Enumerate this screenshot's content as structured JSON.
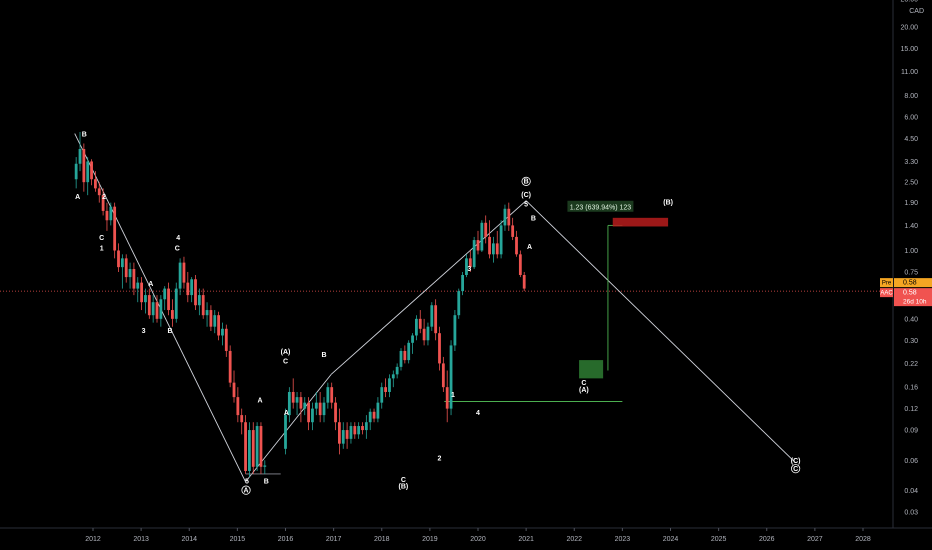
{
  "chart_data": {
    "type": "candlestick",
    "y_scale": "log",
    "currency_label": "CAD",
    "ylim": [
      0.025,
      28
    ],
    "xlim": [
      2011.3,
      2028.7
    ],
    "price_ticks": [
      "28.00",
      "20.00",
      "15.00",
      "11.00",
      "8.00",
      "6.00",
      "4.50",
      "3.30",
      "2.50",
      "1.90",
      "1.40",
      "1.00",
      "0.75",
      "0.58",
      "0.40",
      "0.30",
      "0.22",
      "0.16",
      "0.12",
      "0.09",
      "0.06",
      "0.04",
      "0.03"
    ],
    "x_ticks": [
      "2012",
      "2013",
      "2014",
      "2015",
      "2016",
      "2017",
      "2018",
      "2019",
      "2020",
      "2021",
      "2022",
      "2023",
      "2024",
      "2025",
      "2026",
      "2027",
      "2028"
    ],
    "current_price": 0.58,
    "price_tags": [
      {
        "label": "Pre",
        "value": "0.58",
        "color": "#f5a623"
      },
      {
        "label": "AAC",
        "value": "0.58",
        "color": "#f05350",
        "countdown": "26d 10h"
      }
    ],
    "candles": [
      {
        "t": 2011.65,
        "o": 2.6,
        "h": 3.5,
        "l": 2.3,
        "c": 3.2
      },
      {
        "t": 2011.73,
        "o": 3.2,
        "h": 4.9,
        "l": 2.9,
        "c": 3.9
      },
      {
        "t": 2011.81,
        "o": 3.9,
        "h": 4.2,
        "l": 2.2,
        "c": 2.5
      },
      {
        "t": 2011.89,
        "o": 2.5,
        "h": 3.5,
        "l": 2.1,
        "c": 3.3
      },
      {
        "t": 2011.97,
        "o": 3.3,
        "h": 3.4,
        "l": 2.4,
        "c": 2.6
      },
      {
        "t": 2012.05,
        "o": 2.6,
        "h": 2.9,
        "l": 2.2,
        "c": 2.3
      },
      {
        "t": 2012.13,
        "o": 2.3,
        "h": 2.5,
        "l": 1.9,
        "c": 2.1
      },
      {
        "t": 2012.21,
        "o": 2.1,
        "h": 2.3,
        "l": 1.6,
        "c": 1.7
      },
      {
        "t": 2012.29,
        "o": 1.7,
        "h": 1.9,
        "l": 1.3,
        "c": 1.5
      },
      {
        "t": 2012.37,
        "o": 1.5,
        "h": 1.9,
        "l": 1.4,
        "c": 1.8
      },
      {
        "t": 2012.45,
        "o": 1.8,
        "h": 1.9,
        "l": 0.9,
        "c": 1.0
      },
      {
        "t": 2012.53,
        "o": 1.0,
        "h": 1.1,
        "l": 0.75,
        "c": 0.8
      },
      {
        "t": 2012.61,
        "o": 0.8,
        "h": 0.95,
        "l": 0.6,
        "c": 0.9
      },
      {
        "t": 2012.69,
        "o": 0.9,
        "h": 0.95,
        "l": 0.65,
        "c": 0.7
      },
      {
        "t": 2012.77,
        "o": 0.7,
        "h": 0.85,
        "l": 0.6,
        "c": 0.78
      },
      {
        "t": 2012.85,
        "o": 0.78,
        "h": 0.85,
        "l": 0.55,
        "c": 0.6
      },
      {
        "t": 2012.93,
        "o": 0.6,
        "h": 0.7,
        "l": 0.5,
        "c": 0.65
      },
      {
        "t": 2013.01,
        "o": 0.65,
        "h": 0.7,
        "l": 0.45,
        "c": 0.5
      },
      {
        "t": 2013.09,
        "o": 0.5,
        "h": 0.6,
        "l": 0.43,
        "c": 0.55
      },
      {
        "t": 2013.17,
        "o": 0.55,
        "h": 0.6,
        "l": 0.4,
        "c": 0.42
      },
      {
        "t": 2013.25,
        "o": 0.42,
        "h": 0.55,
        "l": 0.38,
        "c": 0.5
      },
      {
        "t": 2013.33,
        "o": 0.5,
        "h": 0.55,
        "l": 0.38,
        "c": 0.4
      },
      {
        "t": 2013.41,
        "o": 0.4,
        "h": 0.55,
        "l": 0.36,
        "c": 0.52
      },
      {
        "t": 2013.49,
        "o": 0.52,
        "h": 0.62,
        "l": 0.45,
        "c": 0.6
      },
      {
        "t": 2013.57,
        "o": 0.6,
        "h": 0.65,
        "l": 0.42,
        "c": 0.45
      },
      {
        "t": 2013.65,
        "o": 0.45,
        "h": 0.52,
        "l": 0.36,
        "c": 0.4
      },
      {
        "t": 2013.73,
        "o": 0.4,
        "h": 0.65,
        "l": 0.38,
        "c": 0.6
      },
      {
        "t": 2013.81,
        "o": 0.6,
        "h": 0.9,
        "l": 0.55,
        "c": 0.85
      },
      {
        "t": 2013.89,
        "o": 0.85,
        "h": 0.92,
        "l": 0.6,
        "c": 0.65
      },
      {
        "t": 2013.97,
        "o": 0.65,
        "h": 0.75,
        "l": 0.5,
        "c": 0.55
      },
      {
        "t": 2014.05,
        "o": 0.55,
        "h": 0.7,
        "l": 0.5,
        "c": 0.68
      },
      {
        "t": 2014.13,
        "o": 0.68,
        "h": 0.72,
        "l": 0.45,
        "c": 0.48
      },
      {
        "t": 2014.21,
        "o": 0.48,
        "h": 0.6,
        "l": 0.42,
        "c": 0.55
      },
      {
        "t": 2014.29,
        "o": 0.55,
        "h": 0.6,
        "l": 0.4,
        "c": 0.42
      },
      {
        "t": 2014.37,
        "o": 0.42,
        "h": 0.5,
        "l": 0.36,
        "c": 0.45
      },
      {
        "t": 2014.45,
        "o": 0.45,
        "h": 0.48,
        "l": 0.34,
        "c": 0.36
      },
      {
        "t": 2014.53,
        "o": 0.36,
        "h": 0.45,
        "l": 0.33,
        "c": 0.42
      },
      {
        "t": 2014.61,
        "o": 0.42,
        "h": 0.44,
        "l": 0.3,
        "c": 0.32
      },
      {
        "t": 2014.69,
        "o": 0.32,
        "h": 0.38,
        "l": 0.28,
        "c": 0.35
      },
      {
        "t": 2014.77,
        "o": 0.35,
        "h": 0.37,
        "l": 0.24,
        "c": 0.26
      },
      {
        "t": 2014.85,
        "o": 0.26,
        "h": 0.28,
        "l": 0.16,
        "c": 0.17
      },
      {
        "t": 2014.93,
        "o": 0.17,
        "h": 0.2,
        "l": 0.13,
        "c": 0.14
      },
      {
        "t": 2015.01,
        "o": 0.14,
        "h": 0.16,
        "l": 0.1,
        "c": 0.11
      },
      {
        "t": 2015.09,
        "o": 0.11,
        "h": 0.12,
        "l": 0.085,
        "c": 0.1
      },
      {
        "t": 2015.17,
        "o": 0.1,
        "h": 0.11,
        "l": 0.05,
        "c": 0.052
      },
      {
        "t": 2015.25,
        "o": 0.052,
        "h": 0.1,
        "l": 0.048,
        "c": 0.09
      },
      {
        "t": 2015.33,
        "o": 0.09,
        "h": 0.1,
        "l": 0.05,
        "c": 0.055
      },
      {
        "t": 2015.41,
        "o": 0.055,
        "h": 0.1,
        "l": 0.052,
        "c": 0.095
      },
      {
        "t": 2015.49,
        "o": 0.095,
        "h": 0.1,
        "l": 0.05,
        "c": 0.055
      },
      {
        "t": 2015.57,
        "o": 0.055,
        "h": 0.06,
        "l": 0.05,
        "c": 0.056
      },
      {
        "t": 2016.0,
        "o": 0.07,
        "h": 0.12,
        "l": 0.065,
        "c": 0.11
      },
      {
        "t": 2016.08,
        "o": 0.11,
        "h": 0.16,
        "l": 0.1,
        "c": 0.15
      },
      {
        "t": 2016.16,
        "o": 0.15,
        "h": 0.18,
        "l": 0.12,
        "c": 0.13
      },
      {
        "t": 2016.24,
        "o": 0.13,
        "h": 0.15,
        "l": 0.11,
        "c": 0.14
      },
      {
        "t": 2016.32,
        "o": 0.14,
        "h": 0.15,
        "l": 0.1,
        "c": 0.12
      },
      {
        "t": 2016.4,
        "o": 0.12,
        "h": 0.14,
        "l": 0.11,
        "c": 0.13
      },
      {
        "t": 2016.48,
        "o": 0.13,
        "h": 0.14,
        "l": 0.09,
        "c": 0.1
      },
      {
        "t": 2016.56,
        "o": 0.1,
        "h": 0.13,
        "l": 0.09,
        "c": 0.12
      },
      {
        "t": 2016.64,
        "o": 0.12,
        "h": 0.15,
        "l": 0.11,
        "c": 0.13
      },
      {
        "t": 2016.72,
        "o": 0.13,
        "h": 0.15,
        "l": 0.1,
        "c": 0.11
      },
      {
        "t": 2016.8,
        "o": 0.11,
        "h": 0.14,
        "l": 0.1,
        "c": 0.13
      },
      {
        "t": 2016.88,
        "o": 0.13,
        "h": 0.17,
        "l": 0.12,
        "c": 0.16
      },
      {
        "t": 2016.96,
        "o": 0.16,
        "h": 0.17,
        "l": 0.12,
        "c": 0.13
      },
      {
        "t": 2017.04,
        "o": 0.13,
        "h": 0.14,
        "l": 0.09,
        "c": 0.1
      },
      {
        "t": 2017.12,
        "o": 0.1,
        "h": 0.12,
        "l": 0.065,
        "c": 0.075
      },
      {
        "t": 2017.2,
        "o": 0.075,
        "h": 0.1,
        "l": 0.07,
        "c": 0.09
      },
      {
        "t": 2017.28,
        "o": 0.09,
        "h": 0.1,
        "l": 0.07,
        "c": 0.08
      },
      {
        "t": 2017.36,
        "o": 0.08,
        "h": 0.1,
        "l": 0.075,
        "c": 0.095
      },
      {
        "t": 2017.44,
        "o": 0.095,
        "h": 0.1,
        "l": 0.08,
        "c": 0.085
      },
      {
        "t": 2017.52,
        "o": 0.085,
        "h": 0.1,
        "l": 0.08,
        "c": 0.095
      },
      {
        "t": 2017.6,
        "o": 0.095,
        "h": 0.1,
        "l": 0.085,
        "c": 0.09
      },
      {
        "t": 2017.68,
        "o": 0.09,
        "h": 0.11,
        "l": 0.08,
        "c": 0.1
      },
      {
        "t": 2017.76,
        "o": 0.1,
        "h": 0.12,
        "l": 0.09,
        "c": 0.115
      },
      {
        "t": 2017.84,
        "o": 0.115,
        "h": 0.12,
        "l": 0.1,
        "c": 0.105
      },
      {
        "t": 2017.92,
        "o": 0.105,
        "h": 0.14,
        "l": 0.1,
        "c": 0.13
      },
      {
        "t": 2018.0,
        "o": 0.13,
        "h": 0.17,
        "l": 0.12,
        "c": 0.16
      },
      {
        "t": 2018.08,
        "o": 0.16,
        "h": 0.18,
        "l": 0.14,
        "c": 0.15
      },
      {
        "t": 2018.16,
        "o": 0.15,
        "h": 0.19,
        "l": 0.14,
        "c": 0.18
      },
      {
        "t": 2018.24,
        "o": 0.18,
        "h": 0.2,
        "l": 0.16,
        "c": 0.19
      },
      {
        "t": 2018.32,
        "o": 0.19,
        "h": 0.22,
        "l": 0.18,
        "c": 0.21
      },
      {
        "t": 2018.4,
        "o": 0.21,
        "h": 0.27,
        "l": 0.2,
        "c": 0.26
      },
      {
        "t": 2018.48,
        "o": 0.26,
        "h": 0.28,
        "l": 0.22,
        "c": 0.23
      },
      {
        "t": 2018.56,
        "o": 0.23,
        "h": 0.3,
        "l": 0.22,
        "c": 0.29
      },
      {
        "t": 2018.64,
        "o": 0.29,
        "h": 0.33,
        "l": 0.25,
        "c": 0.32
      },
      {
        "t": 2018.72,
        "o": 0.32,
        "h": 0.42,
        "l": 0.3,
        "c": 0.4
      },
      {
        "t": 2018.8,
        "o": 0.4,
        "h": 0.45,
        "l": 0.33,
        "c": 0.35
      },
      {
        "t": 2018.88,
        "o": 0.35,
        "h": 0.4,
        "l": 0.28,
        "c": 0.3
      },
      {
        "t": 2018.96,
        "o": 0.3,
        "h": 0.38,
        "l": 0.28,
        "c": 0.36
      },
      {
        "t": 2019.04,
        "o": 0.36,
        "h": 0.5,
        "l": 0.34,
        "c": 0.48
      },
      {
        "t": 2019.12,
        "o": 0.48,
        "h": 0.52,
        "l": 0.3,
        "c": 0.33
      },
      {
        "t": 2019.2,
        "o": 0.33,
        "h": 0.36,
        "l": 0.2,
        "c": 0.22
      },
      {
        "t": 2019.28,
        "o": 0.22,
        "h": 0.24,
        "l": 0.15,
        "c": 0.16
      },
      {
        "t": 2019.36,
        "o": 0.16,
        "h": 0.2,
        "l": 0.1,
        "c": 0.12
      },
      {
        "t": 2019.44,
        "o": 0.12,
        "h": 0.3,
        "l": 0.11,
        "c": 0.28
      },
      {
        "t": 2019.52,
        "o": 0.28,
        "h": 0.45,
        "l": 0.26,
        "c": 0.42
      },
      {
        "t": 2019.6,
        "o": 0.42,
        "h": 0.6,
        "l": 0.4,
        "c": 0.58
      },
      {
        "t": 2019.68,
        "o": 0.58,
        "h": 0.75,
        "l": 0.55,
        "c": 0.72
      },
      {
        "t": 2019.76,
        "o": 0.72,
        "h": 0.95,
        "l": 0.7,
        "c": 0.9
      },
      {
        "t": 2019.84,
        "o": 0.9,
        "h": 1.0,
        "l": 0.75,
        "c": 0.8
      },
      {
        "t": 2019.92,
        "o": 0.8,
        "h": 1.2,
        "l": 0.78,
        "c": 1.15
      },
      {
        "t": 2020.0,
        "o": 1.15,
        "h": 1.3,
        "l": 0.95,
        "c": 1.0
      },
      {
        "t": 2020.08,
        "o": 1.0,
        "h": 1.5,
        "l": 0.98,
        "c": 1.45
      },
      {
        "t": 2020.16,
        "o": 1.45,
        "h": 1.6,
        "l": 1.1,
        "c": 1.2
      },
      {
        "t": 2020.24,
        "o": 1.2,
        "h": 1.5,
        "l": 0.9,
        "c": 0.95
      },
      {
        "t": 2020.32,
        "o": 0.95,
        "h": 1.2,
        "l": 0.85,
        "c": 1.1
      },
      {
        "t": 2020.4,
        "o": 1.1,
        "h": 1.3,
        "l": 0.9,
        "c": 0.95
      },
      {
        "t": 2020.48,
        "o": 0.95,
        "h": 1.5,
        "l": 0.9,
        "c": 1.4
      },
      {
        "t": 2020.56,
        "o": 1.4,
        "h": 1.85,
        "l": 1.3,
        "c": 1.75
      },
      {
        "t": 2020.64,
        "o": 1.75,
        "h": 1.9,
        "l": 1.3,
        "c": 1.4
      },
      {
        "t": 2020.72,
        "o": 1.4,
        "h": 1.55,
        "l": 1.15,
        "c": 1.2
      },
      {
        "t": 2020.8,
        "o": 1.2,
        "h": 1.3,
        "l": 0.92,
        "c": 0.95
      },
      {
        "t": 2020.88,
        "o": 0.95,
        "h": 1.0,
        "l": 0.7,
        "c": 0.72
      },
      {
        "t": 2020.96,
        "o": 0.72,
        "h": 0.75,
        "l": 0.58,
        "c": 0.6
      }
    ],
    "lines": [
      {
        "from": [
          2011.62,
          4.8
        ],
        "to": [
          2015.17,
          0.045
        ],
        "color": "#d1d4dc"
      },
      {
        "from": [
          2015.17,
          0.045
        ],
        "to": [
          2016.95,
          0.19
        ],
        "color": "#d1d4dc"
      },
      {
        "from": [
          2016.95,
          0.19
        ],
        "to": [
          2021.0,
          1.95
        ],
        "color": "#d1d4dc"
      },
      {
        "from": [
          2021.0,
          1.95
        ],
        "to": [
          2026.6,
          0.058
        ],
        "color": "#d1d4dc"
      },
      {
        "from": [
          2015.17,
          0.05
        ],
        "to": [
          2015.9,
          0.05
        ],
        "color": "#8a8d96"
      },
      {
        "from": [
          2019.3,
          0.132
        ],
        "to": [
          2023.0,
          0.132
        ],
        "color": "#4caf50"
      },
      {
        "from": [
          2022.7,
          0.2
        ],
        "to": [
          2022.7,
          1.4
        ],
        "color": "#4caf50"
      },
      {
        "from": [
          2022.7,
          1.4
        ],
        "to": [
          2023.0,
          1.4
        ],
        "color": "#4caf50"
      }
    ],
    "boxes": [
      {
        "x": [
          2022.1,
          2022.6
        ],
        "y": [
          0.18,
          0.23
        ],
        "color": "#2e7d32"
      },
      {
        "x": [
          2022.8,
          2023.95
        ],
        "y": [
          1.38,
          1.55
        ],
        "color": "#b71c1c"
      }
    ],
    "measure_label": "1.23 (639.94%) 123",
    "wave_labels": [
      {
        "t": 2011.82,
        "y": 4.6,
        "text": "B"
      },
      {
        "t": 2011.68,
        "y": 2.0,
        "text": "A"
      },
      {
        "t": 2012.23,
        "y": 2.0,
        "text": "2"
      },
      {
        "t": 2012.18,
        "y": 1.15,
        "text": "C"
      },
      {
        "t": 2012.18,
        "y": 1.0,
        "text": "1"
      },
      {
        "t": 2013.05,
        "y": 0.33,
        "text": "3"
      },
      {
        "t": 2013.6,
        "y": 0.33,
        "text": "B"
      },
      {
        "t": 2013.2,
        "y": 0.62,
        "text": "A"
      },
      {
        "t": 2013.77,
        "y": 1.15,
        "text": "4"
      },
      {
        "t": 2013.75,
        "y": 1.0,
        "text": "C"
      },
      {
        "t": 2015.47,
        "y": 0.13,
        "text": "A"
      },
      {
        "t": 2015.2,
        "y": 0.044,
        "text": "5"
      },
      {
        "t": 2015.6,
        "y": 0.044,
        "text": "B"
      },
      {
        "t": 2015.18,
        "y": 0.039,
        "text": "A",
        "circled": true
      },
      {
        "t": 2016.0,
        "y": 0.25,
        "text": "(A)"
      },
      {
        "t": 2016.0,
        "y": 0.22,
        "text": "C"
      },
      {
        "t": 2016.02,
        "y": 0.11,
        "text": "A"
      },
      {
        "t": 2016.8,
        "y": 0.24,
        "text": "B"
      },
      {
        "t": 2018.45,
        "y": 0.045,
        "text": "C"
      },
      {
        "t": 2018.45,
        "y": 0.041,
        "text": "(B)"
      },
      {
        "t": 2019.2,
        "y": 0.06,
        "text": "2"
      },
      {
        "t": 2019.48,
        "y": 0.14,
        "text": "1"
      },
      {
        "t": 2020.0,
        "y": 0.11,
        "text": "4"
      },
      {
        "t": 2019.82,
        "y": 0.76,
        "text": "3"
      },
      {
        "t": 2021.0,
        "y": 2.45,
        "text": "B",
        "circled": true
      },
      {
        "t": 2021.0,
        "y": 2.05,
        "text": "(C)"
      },
      {
        "t": 2021.0,
        "y": 1.8,
        "text": "5"
      },
      {
        "t": 2021.15,
        "y": 1.5,
        "text": "B"
      },
      {
        "t": 2021.07,
        "y": 1.02,
        "text": "A"
      },
      {
        "t": 2022.2,
        "y": 0.165,
        "text": "C"
      },
      {
        "t": 2022.2,
        "y": 0.15,
        "text": "(A)"
      },
      {
        "t": 2023.95,
        "y": 1.85,
        "text": "(B)"
      },
      {
        "t": 2026.6,
        "y": 0.058,
        "text": "(C)"
      },
      {
        "t": 2026.6,
        "y": 0.052,
        "text": "C",
        "circled": true
      }
    ]
  }
}
